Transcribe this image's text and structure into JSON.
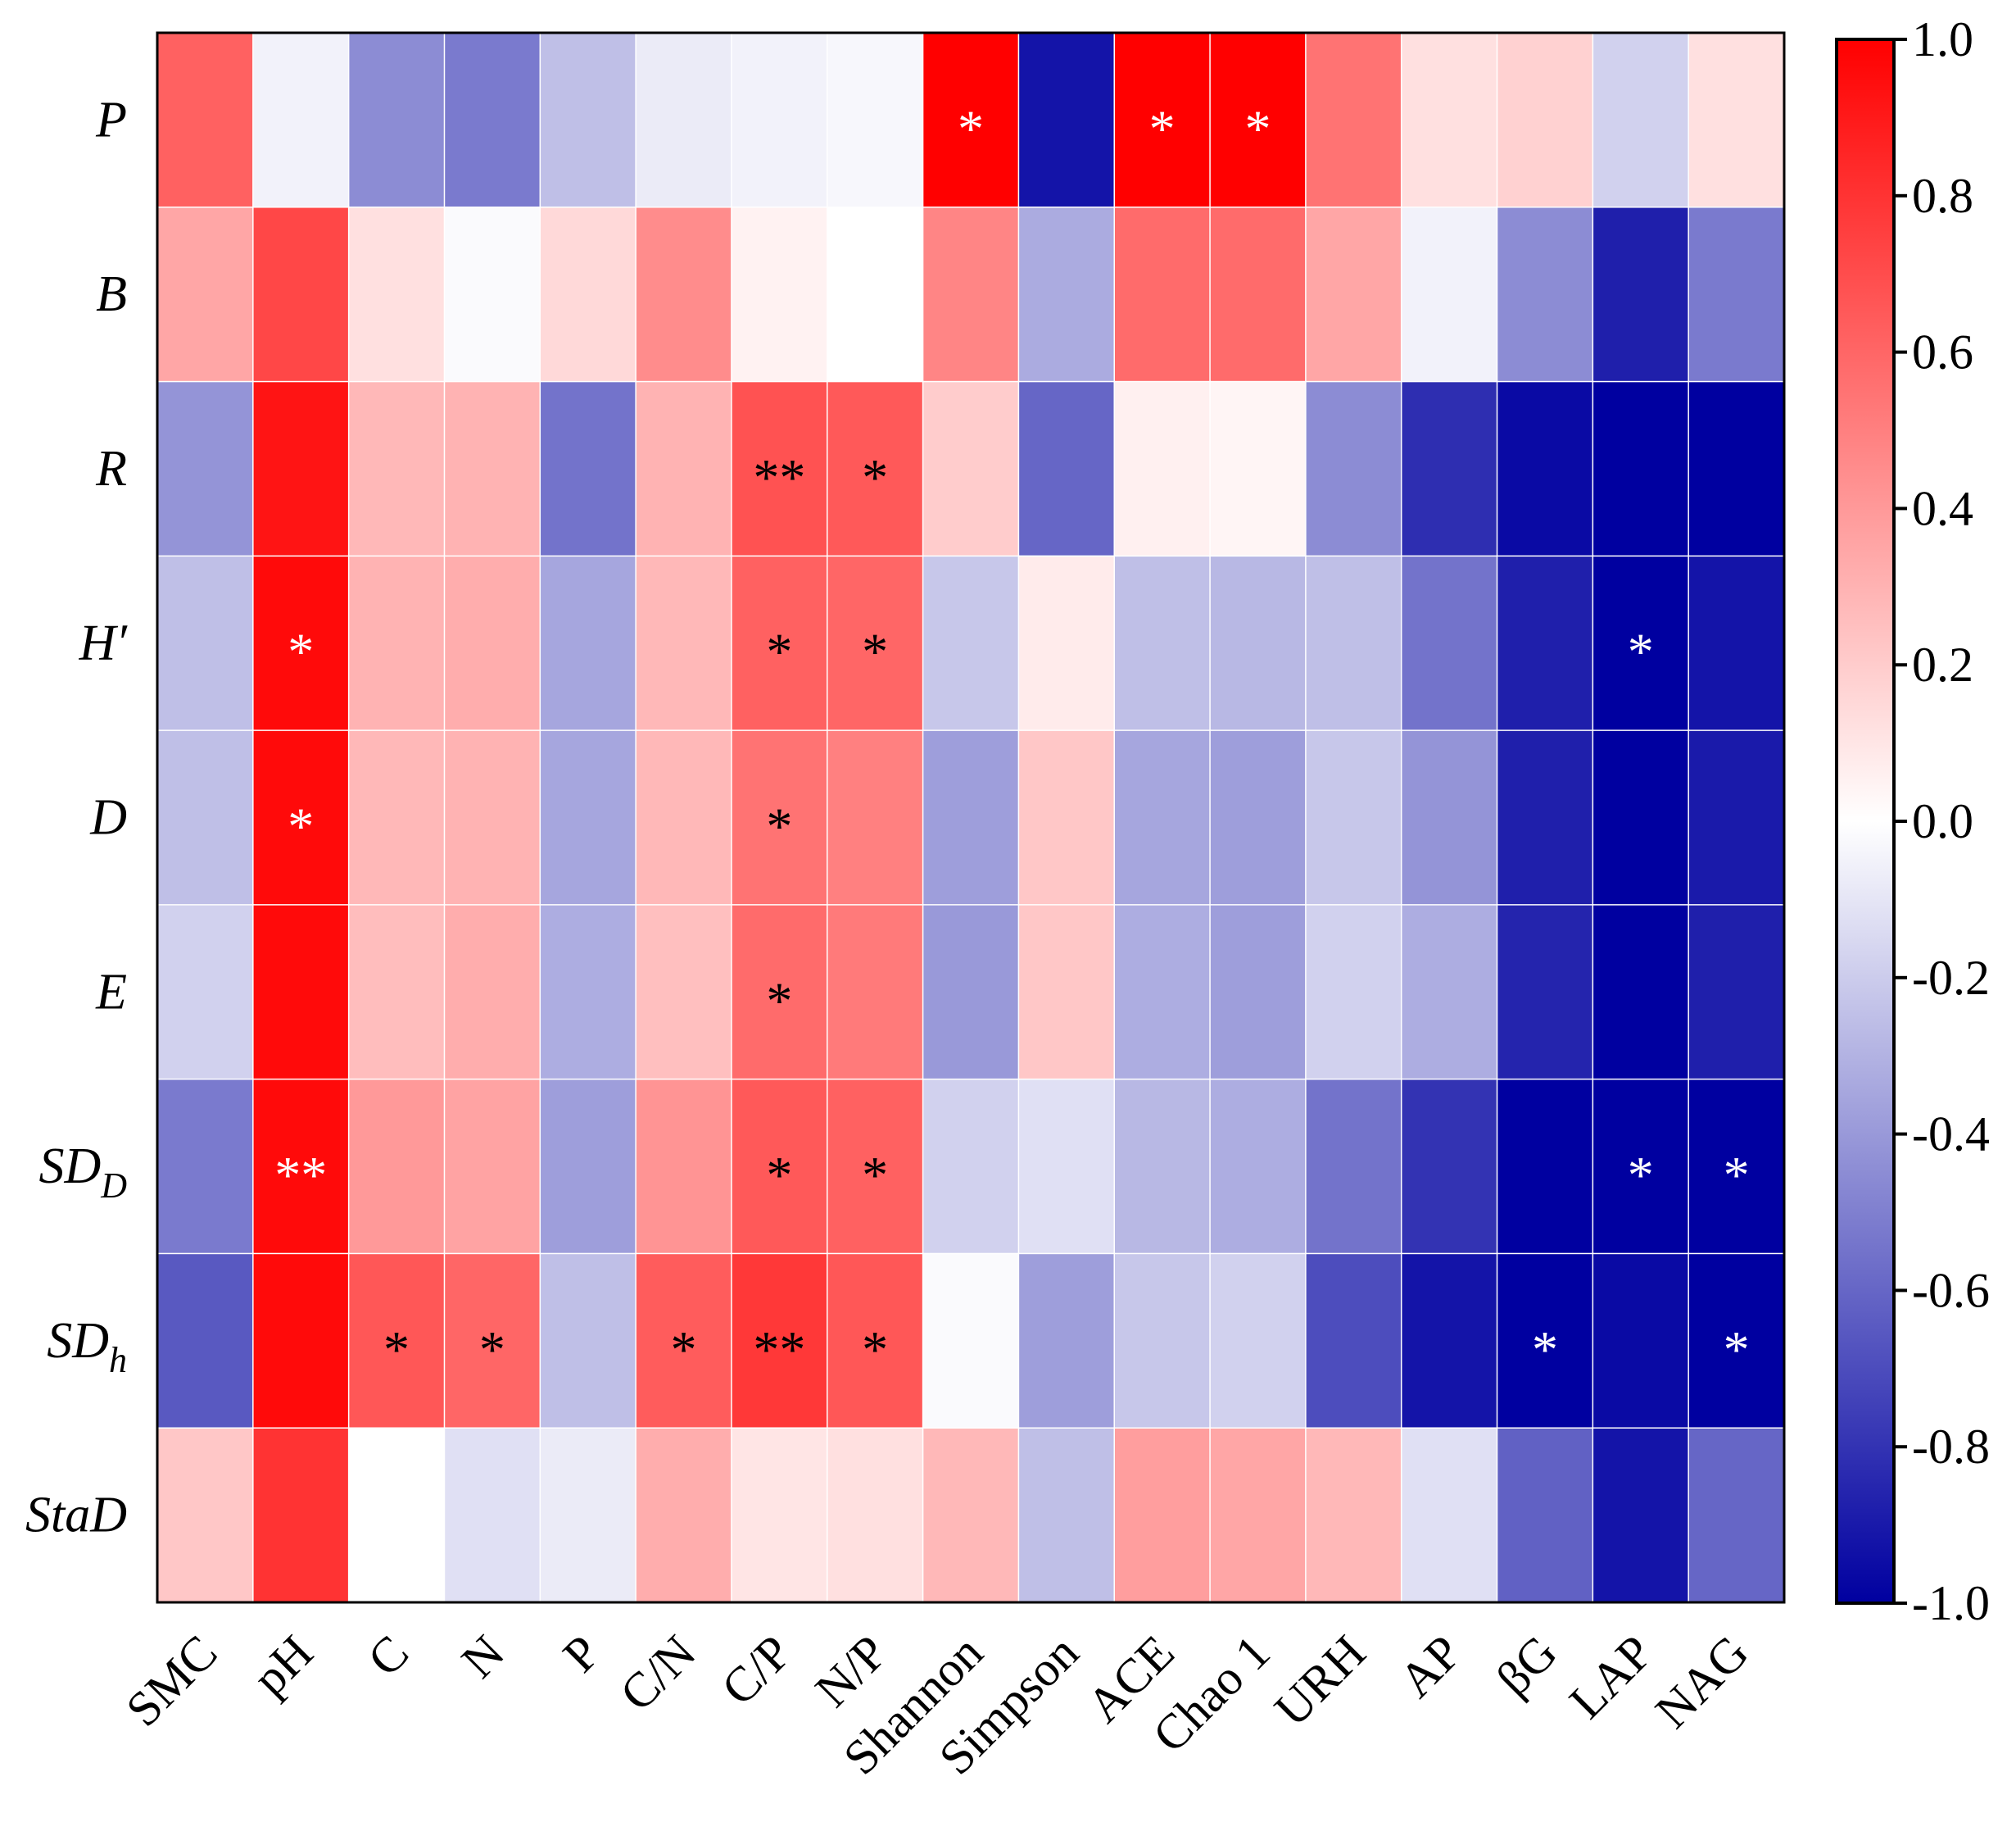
{
  "chart_data": {
    "type": "heatmap",
    "title": "",
    "rows": [
      {
        "key": "P",
        "label": "P",
        "sub": ""
      },
      {
        "key": "B",
        "label": "B",
        "sub": ""
      },
      {
        "key": "R",
        "label": "R",
        "sub": ""
      },
      {
        "key": "H",
        "label": "H′",
        "sub": ""
      },
      {
        "key": "D",
        "label": "D",
        "sub": ""
      },
      {
        "key": "E",
        "label": "E",
        "sub": ""
      },
      {
        "key": "SDD",
        "label": "SD",
        "sub": "D"
      },
      {
        "key": "SDh",
        "label": "SD",
        "sub": "h"
      },
      {
        "key": "StaD",
        "label": "StaD",
        "sub": ""
      }
    ],
    "columns": [
      "SMC",
      "pH",
      "C",
      "N",
      "P",
      "C/N",
      "C/P",
      "N/P",
      "Shannon",
      "Simpson",
      "ACE",
      "Chao 1",
      "URH",
      "AP",
      "βG",
      "LAP",
      "NAG"
    ],
    "values": [
      [
        0.62,
        -0.05,
        -0.45,
        -0.52,
        -0.25,
        -0.08,
        -0.05,
        -0.03,
        1.0,
        -0.92,
        1.0,
        1.0,
        0.55,
        0.12,
        0.18,
        -0.18,
        0.12
      ],
      [
        0.35,
        0.72,
        0.12,
        -0.02,
        0.15,
        0.45,
        0.05,
        0.0,
        0.48,
        -0.33,
        0.58,
        0.58,
        0.35,
        -0.05,
        -0.45,
        -0.88,
        -0.52
      ],
      [
        -0.42,
        0.92,
        0.28,
        0.3,
        -0.55,
        0.3,
        0.68,
        0.65,
        0.2,
        -0.6,
        0.06,
        0.04,
        -0.45,
        -0.82,
        -0.96,
        -1.0,
        -1.0
      ],
      [
        -0.25,
        0.96,
        0.3,
        0.32,
        -0.35,
        0.28,
        0.62,
        0.6,
        -0.22,
        0.08,
        -0.25,
        -0.28,
        -0.25,
        -0.55,
        -0.88,
        -1.0,
        -0.92
      ],
      [
        -0.25,
        0.96,
        0.28,
        0.3,
        -0.35,
        0.28,
        0.55,
        0.5,
        -0.38,
        0.22,
        -0.35,
        -0.38,
        -0.22,
        -0.42,
        -0.88,
        -1.0,
        -0.9
      ],
      [
        -0.18,
        0.96,
        0.26,
        0.32,
        -0.32,
        0.25,
        0.58,
        0.52,
        -0.4,
        0.22,
        -0.32,
        -0.38,
        -0.18,
        -0.32,
        -0.86,
        -1.0,
        -0.88
      ],
      [
        -0.52,
        0.96,
        0.4,
        0.36,
        -0.38,
        0.42,
        0.65,
        0.62,
        -0.18,
        -0.12,
        -0.28,
        -0.32,
        -0.55,
        -0.8,
        -1.0,
        -1.0,
        -1.0
      ],
      [
        -0.65,
        0.96,
        0.66,
        0.6,
        -0.25,
        0.64,
        0.78,
        0.66,
        -0.02,
        -0.38,
        -0.22,
        -0.18,
        -0.7,
        -0.92,
        -1.0,
        -0.96,
        -1.0
      ],
      [
        0.22,
        0.8,
        0.0,
        -0.12,
        -0.08,
        0.32,
        0.1,
        0.12,
        0.28,
        -0.25,
        0.38,
        0.35,
        0.28,
        -0.12,
        -0.62,
        -0.92,
        -0.6
      ]
    ],
    "significance": [
      [
        "",
        "",
        "",
        "",
        "",
        "",
        "",
        "",
        "*",
        "",
        "*",
        "*",
        "",
        "",
        "",
        "",
        ""
      ],
      [
        "",
        "",
        "",
        "",
        "",
        "",
        "",
        "",
        "",
        "",
        "",
        "",
        "",
        "",
        "",
        "",
        ""
      ],
      [
        "",
        "",
        "",
        "",
        "",
        "",
        "**",
        "*",
        "",
        "",
        "",
        "",
        "",
        "",
        "",
        "",
        ""
      ],
      [
        "",
        "*",
        "",
        "",
        "",
        "",
        "*",
        "*",
        "",
        "",
        "",
        "",
        "",
        "",
        "",
        "*",
        ""
      ],
      [
        "",
        "*",
        "",
        "",
        "",
        "",
        "*",
        "",
        "",
        "",
        "",
        "",
        "",
        "",
        "",
        "",
        ""
      ],
      [
        "",
        "",
        "",
        "",
        "",
        "",
        "*",
        "",
        "",
        "",
        "",
        "",
        "",
        "",
        "",
        "",
        ""
      ],
      [
        "",
        "**",
        "",
        "",
        "",
        "",
        "*",
        "*",
        "",
        "",
        "",
        "",
        "",
        "",
        "",
        "*",
        "*"
      ],
      [
        "",
        "",
        "*",
        "*",
        "",
        "*",
        "**",
        "*",
        "",
        "",
        "",
        "",
        "",
        "",
        "*",
        "",
        "*"
      ],
      [
        "",
        "",
        "",
        "",
        "",
        "",
        "",
        "",
        "",
        "",
        "",
        "",
        "",
        "",
        "",
        "",
        ""
      ]
    ],
    "colorbar": {
      "range": [
        -1.0,
        1.0
      ],
      "ticks": [
        "1.0",
        "0.8",
        "0.6",
        "0.4",
        "0.2",
        "0.0",
        "-0.2",
        "-0.4",
        "-0.6",
        "-0.8",
        "-1.0"
      ],
      "low_color": "#0000a0",
      "mid_color": "#ffffff",
      "high_color": "#ff0000"
    },
    "xlabel": "",
    "ylabel": ""
  }
}
